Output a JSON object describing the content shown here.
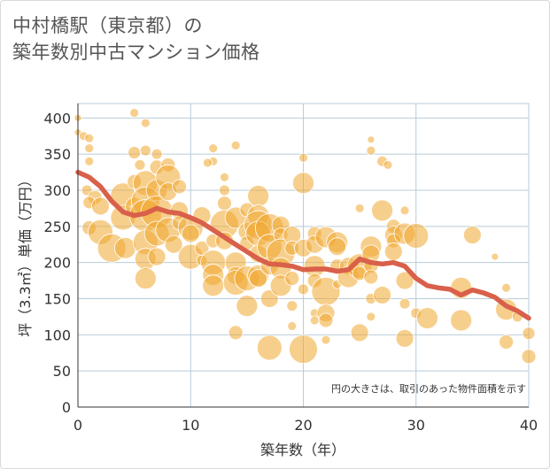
{
  "chart_data": {
    "type": "scatter",
    "title_lines": [
      "中村橋駅（東京都）の",
      "築年数別中古マンション価格"
    ],
    "xlabel": "築年数（年）",
    "ylabel": "坪（3.3㎡）単価（万円）",
    "xlim": [
      0,
      40
    ],
    "ylim": [
      0,
      420
    ],
    "x_ticks": [
      "0",
      "10",
      "20",
      "30",
      "40"
    ],
    "y_ticks": [
      "0",
      "50",
      "100",
      "150",
      "200",
      "250",
      "300",
      "350",
      "400"
    ],
    "grid": true,
    "annotation": "円の大きさは、取引のあった物件面積を示す",
    "colors": {
      "bubble": "#f0a830",
      "trend": "#d9604a",
      "grid": "#b9cbd8",
      "axis": "#333333"
    },
    "bubbles": [
      {
        "x": 0,
        "y": 400,
        "r": 4
      },
      {
        "x": 0,
        "y": 380,
        "r": 4
      },
      {
        "x": 0.5,
        "y": 375,
        "r": 5
      },
      {
        "x": 1,
        "y": 372,
        "r": 5
      },
      {
        "x": 1,
        "y": 358,
        "r": 5
      },
      {
        "x": 1,
        "y": 340,
        "r": 5
      },
      {
        "x": 0.8,
        "y": 300,
        "r": 6
      },
      {
        "x": 1.5,
        "y": 290,
        "r": 8
      },
      {
        "x": 1,
        "y": 283,
        "r": 7
      },
      {
        "x": 2,
        "y": 278,
        "r": 10
      },
      {
        "x": 1,
        "y": 248,
        "r": 8
      },
      {
        "x": 2,
        "y": 242,
        "r": 14
      },
      {
        "x": 3,
        "y": 220,
        "r": 16
      },
      {
        "x": 4,
        "y": 293,
        "r": 14
      },
      {
        "x": 4,
        "y": 262,
        "r": 14
      },
      {
        "x": 4.2,
        "y": 220,
        "r": 12
      },
      {
        "x": 5,
        "y": 407,
        "r": 5
      },
      {
        "x": 5,
        "y": 352,
        "r": 7
      },
      {
        "x": 5.5,
        "y": 335,
        "r": 6
      },
      {
        "x": 5,
        "y": 312,
        "r": 8
      },
      {
        "x": 5,
        "y": 278,
        "r": 10
      },
      {
        "x": 6,
        "y": 393,
        "r": 5
      },
      {
        "x": 6,
        "y": 355,
        "r": 6
      },
      {
        "x": 6,
        "y": 310,
        "r": 14
      },
      {
        "x": 6,
        "y": 285,
        "r": 16
      },
      {
        "x": 6,
        "y": 265,
        "r": 18
      },
      {
        "x": 6,
        "y": 228,
        "r": 14
      },
      {
        "x": 6,
        "y": 205,
        "r": 12
      },
      {
        "x": 6,
        "y": 178,
        "r": 12
      },
      {
        "x": 7,
        "y": 350,
        "r": 6
      },
      {
        "x": 7,
        "y": 332,
        "r": 8
      },
      {
        "x": 7,
        "y": 300,
        "r": 12
      },
      {
        "x": 7,
        "y": 270,
        "r": 18
      },
      {
        "x": 7,
        "y": 240,
        "r": 14
      },
      {
        "x": 7,
        "y": 208,
        "r": 10
      },
      {
        "x": 8,
        "y": 335,
        "r": 8
      },
      {
        "x": 8,
        "y": 318,
        "r": 14
      },
      {
        "x": 8,
        "y": 298,
        "r": 10
      },
      {
        "x": 8,
        "y": 245,
        "r": 14
      },
      {
        "x": 8.5,
        "y": 225,
        "r": 10
      },
      {
        "x": 9,
        "y": 305,
        "r": 8
      },
      {
        "x": 9,
        "y": 272,
        "r": 10
      },
      {
        "x": 9,
        "y": 255,
        "r": 8
      },
      {
        "x": 10,
        "y": 248,
        "r": 14
      },
      {
        "x": 10,
        "y": 240,
        "r": 10
      },
      {
        "x": 10,
        "y": 208,
        "r": 14
      },
      {
        "x": 11,
        "y": 265,
        "r": 10
      },
      {
        "x": 11,
        "y": 220,
        "r": 8
      },
      {
        "x": 11,
        "y": 203,
        "r": 6
      },
      {
        "x": 12,
        "y": 358,
        "r": 5
      },
      {
        "x": 12,
        "y": 340,
        "r": 5
      },
      {
        "x": 11.5,
        "y": 338,
        "r": 5
      },
      {
        "x": 12,
        "y": 230,
        "r": 8
      },
      {
        "x": 12,
        "y": 200,
        "r": 14
      },
      {
        "x": 12,
        "y": 183,
        "r": 12
      },
      {
        "x": 12,
        "y": 168,
        "r": 12
      },
      {
        "x": 13,
        "y": 318,
        "r": 5
      },
      {
        "x": 13,
        "y": 300,
        "r": 6
      },
      {
        "x": 13,
        "y": 282,
        "r": 8
      },
      {
        "x": 13,
        "y": 253,
        "r": 16
      },
      {
        "x": 13,
        "y": 230,
        "r": 10
      },
      {
        "x": 14,
        "y": 362,
        "r": 5
      },
      {
        "x": 14,
        "y": 262,
        "r": 12
      },
      {
        "x": 14,
        "y": 200,
        "r": 12
      },
      {
        "x": 14,
        "y": 182,
        "r": 10
      },
      {
        "x": 14,
        "y": 172,
        "r": 14
      },
      {
        "x": 14,
        "y": 103,
        "r": 8
      },
      {
        "x": 15,
        "y": 273,
        "r": 8
      },
      {
        "x": 15,
        "y": 243,
        "r": 10
      },
      {
        "x": 15,
        "y": 227,
        "r": 8
      },
      {
        "x": 15,
        "y": 178,
        "r": 14
      },
      {
        "x": 15,
        "y": 140,
        "r": 12
      },
      {
        "x": 16,
        "y": 292,
        "r": 12
      },
      {
        "x": 16,
        "y": 265,
        "r": 12
      },
      {
        "x": 16,
        "y": 252,
        "r": 16
      },
      {
        "x": 16,
        "y": 240,
        "r": 14
      },
      {
        "x": 16,
        "y": 212,
        "r": 10
      },
      {
        "x": 16,
        "y": 182,
        "r": 12
      },
      {
        "x": 16,
        "y": 178,
        "r": 10
      },
      {
        "x": 17,
        "y": 248,
        "r": 16
      },
      {
        "x": 17,
        "y": 222,
        "r": 14
      },
      {
        "x": 17,
        "y": 195,
        "r": 10
      },
      {
        "x": 17,
        "y": 150,
        "r": 10
      },
      {
        "x": 17,
        "y": 82,
        "r": 14
      },
      {
        "x": 18,
        "y": 252,
        "r": 10
      },
      {
        "x": 18,
        "y": 238,
        "r": 8
      },
      {
        "x": 18,
        "y": 213,
        "r": 16
      },
      {
        "x": 18,
        "y": 192,
        "r": 12
      },
      {
        "x": 18,
        "y": 168,
        "r": 12
      },
      {
        "x": 19,
        "y": 238,
        "r": 10
      },
      {
        "x": 19,
        "y": 220,
        "r": 8
      },
      {
        "x": 19,
        "y": 178,
        "r": 8
      },
      {
        "x": 19,
        "y": 140,
        "r": 6
      },
      {
        "x": 19,
        "y": 112,
        "r": 5
      },
      {
        "x": 20,
        "y": 345,
        "r": 5
      },
      {
        "x": 20,
        "y": 310,
        "r": 12
      },
      {
        "x": 20,
        "y": 220,
        "r": 10
      },
      {
        "x": 20,
        "y": 163,
        "r": 6
      },
      {
        "x": 20,
        "y": 80,
        "r": 16
      },
      {
        "x": 21,
        "y": 240,
        "r": 8
      },
      {
        "x": 21,
        "y": 225,
        "r": 10
      },
      {
        "x": 21,
        "y": 195,
        "r": 12
      },
      {
        "x": 21,
        "y": 175,
        "r": 8
      },
      {
        "x": 21,
        "y": 130,
        "r": 5
      },
      {
        "x": 21,
        "y": 120,
        "r": 5
      },
      {
        "x": 22,
        "y": 235,
        "r": 12
      },
      {
        "x": 22,
        "y": 160,
        "r": 16
      },
      {
        "x": 22,
        "y": 130,
        "r": 10
      },
      {
        "x": 22,
        "y": 120,
        "r": 8
      },
      {
        "x": 22,
        "y": 93,
        "r": 5
      },
      {
        "x": 23,
        "y": 228,
        "r": 12
      },
      {
        "x": 23,
        "y": 222,
        "r": 10
      },
      {
        "x": 23,
        "y": 195,
        "r": 8
      },
      {
        "x": 23,
        "y": 170,
        "r": 5
      },
      {
        "x": 24,
        "y": 195,
        "r": 10
      },
      {
        "x": 24,
        "y": 180,
        "r": 12
      },
      {
        "x": 24.5,
        "y": 195,
        "r": 6
      },
      {
        "x": 25,
        "y": 275,
        "r": 5
      },
      {
        "x": 25,
        "y": 195,
        "r": 14
      },
      {
        "x": 25,
        "y": 185,
        "r": 8
      },
      {
        "x": 25,
        "y": 103,
        "r": 10
      },
      {
        "x": 26,
        "y": 370,
        "r": 4
      },
      {
        "x": 26,
        "y": 355,
        "r": 5
      },
      {
        "x": 26,
        "y": 222,
        "r": 12
      },
      {
        "x": 26,
        "y": 212,
        "r": 10
      },
      {
        "x": 26,
        "y": 195,
        "r": 8
      },
      {
        "x": 26,
        "y": 180,
        "r": 8
      },
      {
        "x": 26,
        "y": 150,
        "r": 6
      },
      {
        "x": 26,
        "y": 125,
        "r": 5
      },
      {
        "x": 27,
        "y": 340,
        "r": 6
      },
      {
        "x": 27,
        "y": 272,
        "r": 12
      },
      {
        "x": 27,
        "y": 155,
        "r": 10
      },
      {
        "x": 27.5,
        "y": 335,
        "r": 5
      },
      {
        "x": 28,
        "y": 250,
        "r": 8
      },
      {
        "x": 28,
        "y": 238,
        "r": 10
      },
      {
        "x": 28,
        "y": 230,
        "r": 8
      },
      {
        "x": 28,
        "y": 215,
        "r": 10
      },
      {
        "x": 29,
        "y": 272,
        "r": 5
      },
      {
        "x": 29,
        "y": 240,
        "r": 12
      },
      {
        "x": 29,
        "y": 175,
        "r": 10
      },
      {
        "x": 29,
        "y": 143,
        "r": 6
      },
      {
        "x": 29,
        "y": 95,
        "r": 10
      },
      {
        "x": 30,
        "y": 237,
        "r": 14
      },
      {
        "x": 30,
        "y": 130,
        "r": 6
      },
      {
        "x": 31,
        "y": 123,
        "r": 12
      },
      {
        "x": 34,
        "y": 165,
        "r": 12
      },
      {
        "x": 34,
        "y": 120,
        "r": 12
      },
      {
        "x": 35,
        "y": 238,
        "r": 10
      },
      {
        "x": 37,
        "y": 208,
        "r": 4
      },
      {
        "x": 38,
        "y": 165,
        "r": 5
      },
      {
        "x": 38,
        "y": 135,
        "r": 12
      },
      {
        "x": 38,
        "y": 90,
        "r": 8
      },
      {
        "x": 39,
        "y": 125,
        "r": 6
      },
      {
        "x": 40,
        "y": 102,
        "r": 7
      },
      {
        "x": 40,
        "y": 70,
        "r": 8
      }
    ],
    "trend": {
      "x": [
        0,
        1,
        2,
        3,
        4,
        5,
        6,
        7,
        8,
        9,
        10,
        11,
        12,
        13,
        14,
        15,
        16,
        17,
        18,
        19,
        20,
        21,
        22,
        23,
        24,
        25,
        26,
        27,
        28,
        29,
        30,
        31,
        32,
        33,
        34,
        35,
        36,
        37,
        38,
        39,
        40
      ],
      "y": [
        325,
        318,
        305,
        285,
        270,
        265,
        268,
        275,
        270,
        268,
        262,
        255,
        245,
        235,
        225,
        215,
        205,
        198,
        197,
        195,
        190,
        191,
        191,
        188,
        190,
        205,
        200,
        198,
        200,
        195,
        178,
        168,
        165,
        163,
        155,
        162,
        158,
        152,
        140,
        133,
        123
      ]
    }
  }
}
